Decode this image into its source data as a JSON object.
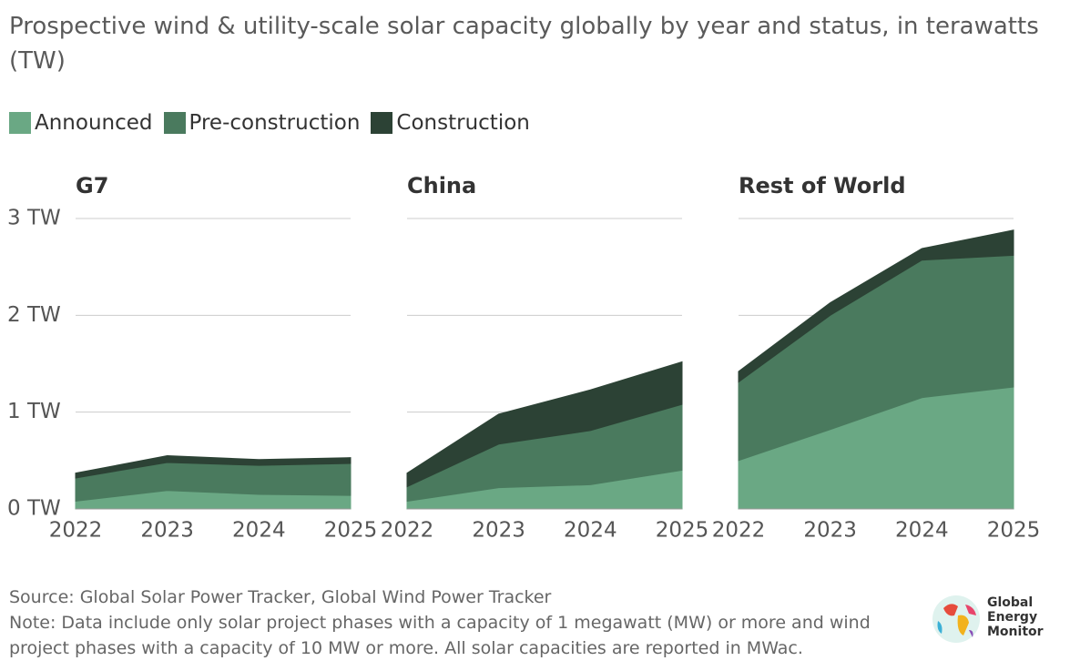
{
  "title": "Prospective wind & utility-scale solar capacity globally by year and status, in terawatts (TW)",
  "source": "Source: Global Solar Power Tracker, Global Wind Power Tracker",
  "note": "Note: Data include only solar project phases with a capacity of 1 megawatt (MW) or more and wind project phases with a capacity of 10 MW or more. All solar capacities are reported in MWac.",
  "logo": "Global Energy Monitor",
  "chart_data": [
    {
      "type": "stacked-area",
      "title": "G7",
      "categories": [
        "2022",
        "2023",
        "2024",
        "2025"
      ],
      "series": [
        {
          "name": "Announced",
          "color": "#6aa884",
          "values": [
            0.08,
            0.19,
            0.15,
            0.14
          ]
        },
        {
          "name": "Pre-construction",
          "color": "#4a7a5e",
          "values": [
            0.24,
            0.29,
            0.3,
            0.33
          ]
        },
        {
          "name": "Construction",
          "color": "#2c4235",
          "values": [
            0.05,
            0.07,
            0.06,
            0.06
          ]
        }
      ],
      "ylim": [
        0,
        3
      ],
      "yticks": [
        {
          "value": 0,
          "label": "0 TW"
        },
        {
          "value": 1,
          "label": "1 TW"
        },
        {
          "value": 2,
          "label": "2 TW"
        },
        {
          "value": 3,
          "label": "3 TW"
        }
      ],
      "grid": true
    },
    {
      "type": "stacked-area",
      "title": "China",
      "categories": [
        "2022",
        "2023",
        "2024",
        "2025"
      ],
      "series": [
        {
          "name": "Announced",
          "color": "#6aa884",
          "values": [
            0.08,
            0.22,
            0.25,
            0.4
          ]
        },
        {
          "name": "Pre-construction",
          "color": "#4a7a5e",
          "values": [
            0.15,
            0.45,
            0.56,
            0.68
          ]
        },
        {
          "name": "Construction",
          "color": "#2c4235",
          "values": [
            0.14,
            0.31,
            0.42,
            0.44
          ]
        }
      ],
      "ylim": [
        0,
        3
      ],
      "yticks": [
        0,
        1,
        2,
        3
      ],
      "grid": true
    },
    {
      "type": "stacked-area",
      "title": "Rest of World",
      "categories": [
        "2022",
        "2023",
        "2024",
        "2025"
      ],
      "series": [
        {
          "name": "Announced",
          "color": "#6aa884",
          "values": [
            0.5,
            0.82,
            1.15,
            1.26
          ]
        },
        {
          "name": "Pre-construction",
          "color": "#4a7a5e",
          "values": [
            0.81,
            1.18,
            1.42,
            1.36
          ]
        },
        {
          "name": "Construction",
          "color": "#2c4235",
          "values": [
            0.11,
            0.13,
            0.12,
            0.26
          ]
        }
      ],
      "ylim": [
        0,
        3
      ],
      "yticks": [
        0,
        1,
        2,
        3
      ],
      "grid": true
    }
  ]
}
